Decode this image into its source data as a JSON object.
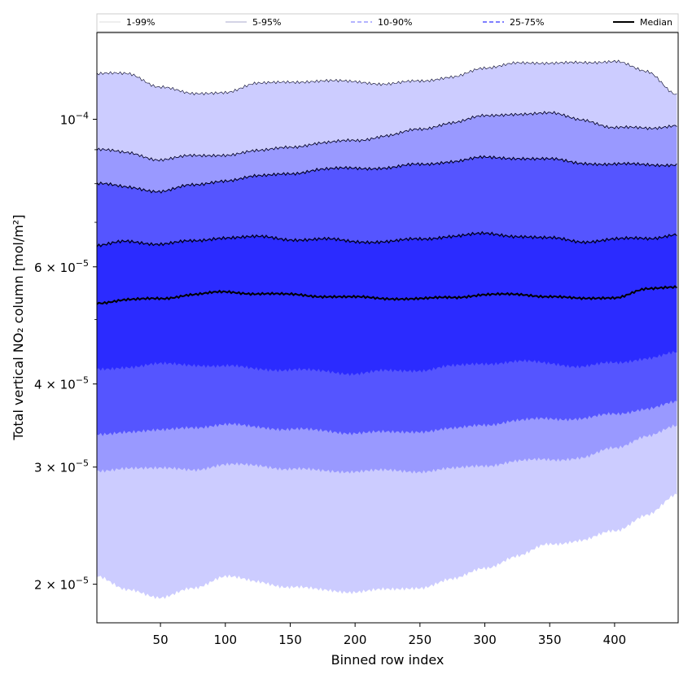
{
  "chart_data": {
    "type": "area",
    "xlabel": "Binned row index",
    "ylabel": "Total vertical NO₂ column [mol/m²]",
    "yscale": "log",
    "xlim": [
      1,
      449
    ],
    "ylim": [
      1.75e-05,
      0.000135
    ],
    "x_ticks": [
      50,
      100,
      150,
      200,
      250,
      300,
      350,
      400
    ],
    "y_ticks": [
      {
        "value": 0.0001,
        "mantissa": "",
        "base": "10",
        "exp": "−4"
      },
      {
        "value": 6e-05,
        "mantissa": "6 × ",
        "base": "10",
        "exp": "−5"
      },
      {
        "value": 4e-05,
        "mantissa": "4 × ",
        "base": "10",
        "exp": "−5"
      },
      {
        "value": 3e-05,
        "mantissa": "3 × ",
        "base": "10",
        "exp": "−5"
      },
      {
        "value": 2e-05,
        "mantissa": "2 × ",
        "base": "10",
        "exp": "−5"
      }
    ],
    "y_minor_ticks": [
      9e-05,
      8e-05,
      7e-05,
      5e-05
    ],
    "x": [
      1,
      25,
      50,
      75,
      100,
      125,
      150,
      175,
      200,
      225,
      250,
      275,
      300,
      325,
      350,
      375,
      400,
      425,
      449
    ],
    "bands": [
      {
        "name": "1-99%",
        "color": "#ccccff",
        "line_style": "solid",
        "lower": [
          2.05e-05,
          1.97e-05,
          1.9e-05,
          1.98e-05,
          2.05e-05,
          2.02e-05,
          1.98e-05,
          1.96e-05,
          1.95e-05,
          1.96e-05,
          1.98e-05,
          2.03e-05,
          2.12e-05,
          2.2e-05,
          2.3e-05,
          2.33e-05,
          2.4e-05,
          2.55e-05,
          2.72e-05
        ],
        "upper": [
          0.000117,
          0.000117,
          0.000112,
          0.000109,
          0.00011,
          0.000113,
          0.000114,
          0.000114,
          0.000114,
          0.000113,
          0.000114,
          0.000116,
          0.000119,
          0.000122,
          0.000121,
          0.000122,
          0.000122,
          0.000118,
          0.000109
        ]
      },
      {
        "name": "5-95%",
        "color": "#9999ff",
        "line_style": "solid",
        "lower": [
          2.95e-05,
          3e-05,
          2.98e-05,
          2.98e-05,
          3.02e-05,
          3.02e-05,
          2.98e-05,
          2.96e-05,
          2.96e-05,
          2.96e-05,
          2.96e-05,
          2.98e-05,
          3.02e-05,
          3.06e-05,
          3.08e-05,
          3.1e-05,
          3.2e-05,
          3.35e-05,
          3.45e-05
        ],
        "upper": [
          9e-05,
          8.9e-05,
          8.7e-05,
          8.8e-05,
          8.85e-05,
          8.95e-05,
          9.1e-05,
          9.2e-05,
          9.3e-05,
          9.45e-05,
          9.65e-05,
          9.9e-05,
          0.000101,
          0.000102,
          0.000102,
          0.0001,
          9.7e-05,
          9.7e-05,
          9.8e-05
        ]
      },
      {
        "name": "10-90%",
        "color": "#5555ff",
        "line_style": "dashed",
        "lower": [
          3.35e-05,
          3.4e-05,
          3.4e-05,
          3.45e-05,
          3.47e-05,
          3.45e-05,
          3.42e-05,
          3.4e-05,
          3.38e-05,
          3.38e-05,
          3.4e-05,
          3.42e-05,
          3.48e-05,
          3.52e-05,
          3.55e-05,
          3.55e-05,
          3.6e-05,
          3.68e-05,
          3.75e-05
        ],
        "upper": [
          8e-05,
          7.9e-05,
          7.8e-05,
          7.95e-05,
          8.1e-05,
          8.2e-05,
          8.3e-05,
          8.4e-05,
          8.45e-05,
          8.45e-05,
          8.55e-05,
          8.65e-05,
          8.75e-05,
          8.75e-05,
          8.7e-05,
          8.6e-05,
          8.55e-05,
          8.55e-05,
          8.55e-05
        ]
      },
      {
        "name": "25-75%",
        "color": "#2b2bff",
        "line_style": "dashed",
        "lower": [
          4.2e-05,
          4.25e-05,
          4.28e-05,
          4.28e-05,
          4.25e-05,
          4.22e-05,
          4.2e-05,
          4.18e-05,
          4.15e-05,
          4.18e-05,
          4.2e-05,
          4.25e-05,
          4.3e-05,
          4.32e-05,
          4.3e-05,
          4.25e-05,
          4.3e-05,
          4.38e-05,
          4.45e-05
        ],
        "upper": [
          6.45e-05,
          6.55e-05,
          6.5e-05,
          6.55e-05,
          6.65e-05,
          6.65e-05,
          6.6e-05,
          6.6e-05,
          6.55e-05,
          6.55e-05,
          6.6e-05,
          6.68e-05,
          6.72e-05,
          6.68e-05,
          6.62e-05,
          6.55e-05,
          6.6e-05,
          6.62e-05,
          6.72e-05
        ]
      }
    ],
    "median": {
      "name": "Median",
      "color": "#000000",
      "values": [
        5.3e-05,
        5.35e-05,
        5.38e-05,
        5.45e-05,
        5.5e-05,
        5.47e-05,
        5.45e-05,
        5.42e-05,
        5.4e-05,
        5.38e-05,
        5.37e-05,
        5.4e-05,
        5.45e-05,
        5.45e-05,
        5.42e-05,
        5.37e-05,
        5.4e-05,
        5.55e-05,
        5.6e-05
      ]
    },
    "legend": {
      "placement": "top",
      "entries": [
        "1-99%",
        "5-95%",
        "10-90%",
        "25-75%",
        "Median"
      ]
    }
  }
}
